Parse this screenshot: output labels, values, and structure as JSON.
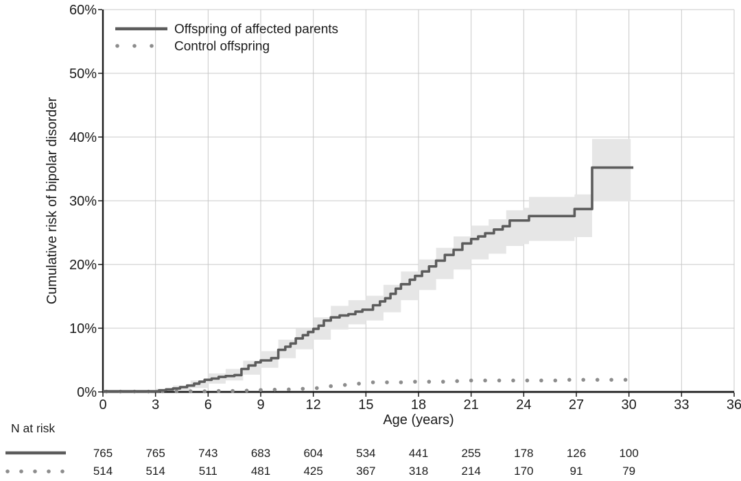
{
  "chart_data": {
    "type": "line",
    "subtype": "kaplan-meier-cumulative-risk-step-curve-with-ci-band",
    "title": "",
    "xlabel": "Age (years)",
    "ylabel": "Cumulative risk of bipolar disorder",
    "xlim": [
      0,
      36
    ],
    "ylim": [
      0,
      60
    ],
    "xticks": [
      0,
      3,
      6,
      9,
      12,
      15,
      18,
      21,
      24,
      27,
      30,
      33,
      36
    ],
    "xtick_labels": [
      "0",
      "3",
      "6",
      "9",
      "12",
      "15",
      "18",
      "21",
      "24",
      "27",
      "30",
      "33",
      "36"
    ],
    "yticks": [
      0,
      10,
      20,
      30,
      40,
      50,
      60
    ],
    "ytick_labels": [
      "0%",
      "10%",
      "20%",
      "30%",
      "40%",
      "50%",
      "60%"
    ],
    "grid": true,
    "legend_position": "top-left",
    "colors": {
      "main_line": "#5c5c5c",
      "ci_band": "#e6e6e6",
      "control_dots": "#8c8c8c",
      "gridline": "#c8c8c8",
      "axis": "#1a1a1a",
      "text": "#1a1a1a",
      "background": "#ffffff"
    },
    "series": [
      {
        "name": "Offspring of affected parents",
        "style": "solid-step",
        "color": "#5c5c5c",
        "points": [
          [
            0,
            0.1
          ],
          [
            3.2,
            0.25
          ],
          [
            3.6,
            0.4
          ],
          [
            4,
            0.55
          ],
          [
            4.4,
            0.75
          ],
          [
            4.8,
            1
          ],
          [
            5.2,
            1.3
          ],
          [
            5.5,
            1.6
          ],
          [
            5.8,
            1.9
          ],
          [
            6.2,
            2.1
          ],
          [
            6.6,
            2.35
          ],
          [
            7,
            2.5
          ],
          [
            7.5,
            2.65
          ],
          [
            7.9,
            3.6
          ],
          [
            8.3,
            4.15
          ],
          [
            8.7,
            4.65
          ],
          [
            9,
            4.95
          ],
          [
            9.6,
            5.3
          ],
          [
            10,
            6.6
          ],
          [
            10.4,
            7.1
          ],
          [
            10.7,
            7.6
          ],
          [
            11,
            8.4
          ],
          [
            11.4,
            8.9
          ],
          [
            11.7,
            9.4
          ],
          [
            12,
            9.9
          ],
          [
            12.3,
            10.4
          ],
          [
            12.6,
            11.2
          ],
          [
            13,
            11.7
          ],
          [
            13.5,
            12
          ],
          [
            14,
            12.2
          ],
          [
            14.4,
            12.6
          ],
          [
            14.8,
            12.9
          ],
          [
            15.4,
            13.6
          ],
          [
            15.8,
            14.2
          ],
          [
            16.1,
            14.7
          ],
          [
            16.4,
            15.4
          ],
          [
            16.7,
            16.2
          ],
          [
            17,
            16.9
          ],
          [
            17.5,
            17.6
          ],
          [
            17.8,
            18.2
          ],
          [
            18.2,
            18.9
          ],
          [
            18.6,
            19.7
          ],
          [
            19,
            20.6
          ],
          [
            19.5,
            21.5
          ],
          [
            20,
            22.3
          ],
          [
            20.5,
            23.3
          ],
          [
            21,
            24
          ],
          [
            21.4,
            24.4
          ],
          [
            21.8,
            24.9
          ],
          [
            22.3,
            25.5
          ],
          [
            22.8,
            26
          ],
          [
            23.2,
            26.9
          ],
          [
            24.3,
            27.6
          ],
          [
            26.9,
            28.7
          ],
          [
            27.9,
            35.2
          ],
          [
            30.25,
            35.2
          ]
        ],
        "ci_band": {
          "color": "#e6e6e6",
          "points_age_lower_upper": [
            [
              0,
              0,
              0.1
            ],
            [
              3,
              0.05,
              0.5
            ],
            [
              4,
              0.2,
              1
            ],
            [
              5,
              0.6,
              1.8
            ],
            [
              6,
              1.3,
              2.9
            ],
            [
              7,
              1.8,
              3.6
            ],
            [
              8,
              2.7,
              4.9
            ],
            [
              9,
              3.8,
              6.4
            ],
            [
              10,
              5.3,
              8.2
            ],
            [
              11,
              6.7,
              9.9
            ],
            [
              12,
              8.2,
              11.7
            ],
            [
              13,
              9.8,
              13.5
            ],
            [
              14,
              10.6,
              14.4
            ],
            [
              15,
              11.2,
              15.1
            ],
            [
              16,
              12.5,
              16.8
            ],
            [
              17,
              14.4,
              18.9
            ],
            [
              18,
              16,
              20.8
            ],
            [
              19,
              17.7,
              22.6
            ],
            [
              20,
              19.2,
              24.4
            ],
            [
              21,
              20.8,
              26.1
            ],
            [
              22,
              21.7,
              27.1
            ],
            [
              23,
              22.9,
              28.5
            ],
            [
              24,
              23.2,
              28.9
            ],
            [
              24.3,
              23.7,
              30.6
            ],
            [
              26.9,
              24.3,
              31
            ],
            [
              27.9,
              29.9,
              39.7
            ],
            [
              30.1,
              29.9,
              39.7
            ]
          ]
        }
      },
      {
        "name": "Control offspring",
        "style": "dotted",
        "color": "#8c8c8c",
        "points": [
          [
            0.2,
            0.05
          ],
          [
            1,
            0.05
          ],
          [
            1.8,
            0.05
          ],
          [
            2.6,
            0.05
          ],
          [
            3.4,
            0.1
          ],
          [
            4.2,
            0.1
          ],
          [
            5,
            0.1
          ],
          [
            5.8,
            0.1
          ],
          [
            6.6,
            0.15
          ],
          [
            7.4,
            0.15
          ],
          [
            8.2,
            0.2
          ],
          [
            9,
            0.3
          ],
          [
            9.8,
            0.35
          ],
          [
            10.6,
            0.4
          ],
          [
            11.4,
            0.5
          ],
          [
            12.2,
            0.6
          ],
          [
            13,
            0.9
          ],
          [
            13.8,
            1.1
          ],
          [
            14.6,
            1.3
          ],
          [
            15.4,
            1.5
          ],
          [
            16.2,
            1.5
          ],
          [
            17,
            1.5
          ],
          [
            17.8,
            1.6
          ],
          [
            18.6,
            1.6
          ],
          [
            19.4,
            1.6
          ],
          [
            20.2,
            1.7
          ],
          [
            21,
            1.8
          ],
          [
            21.8,
            1.8
          ],
          [
            22.6,
            1.8
          ],
          [
            23.4,
            1.8
          ],
          [
            24.2,
            1.8
          ],
          [
            25,
            1.8
          ],
          [
            25.8,
            1.8
          ],
          [
            26.6,
            1.9
          ],
          [
            27.4,
            1.9
          ],
          [
            28.2,
            1.9
          ],
          [
            29,
            1.9
          ],
          [
            29.8,
            1.9
          ]
        ]
      }
    ],
    "n_at_risk": {
      "title": "N at risk",
      "ages": [
        0,
        3,
        6,
        9,
        12,
        15,
        18,
        21,
        24,
        27,
        30
      ],
      "rows": [
        {
          "series": "Offspring of affected parents",
          "marker": "solid-line",
          "values": [
            765,
            765,
            743,
            683,
            604,
            534,
            441,
            255,
            178,
            126,
            100
          ]
        },
        {
          "series": "Control offspring",
          "marker": "dots",
          "values": [
            514,
            514,
            511,
            481,
            425,
            367,
            318,
            214,
            170,
            91,
            79
          ]
        }
      ]
    }
  }
}
